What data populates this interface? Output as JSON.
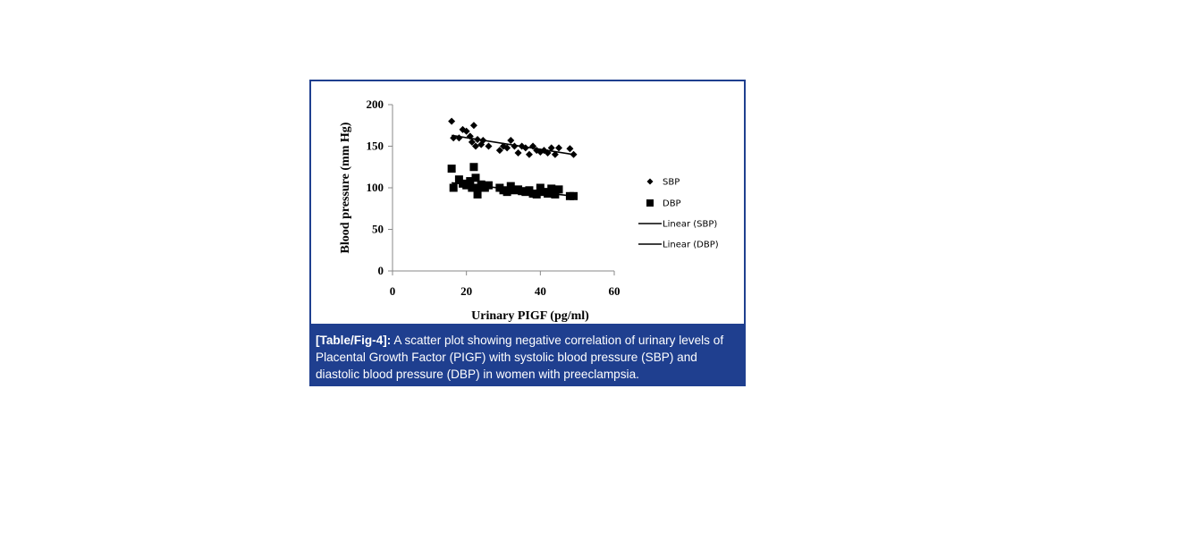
{
  "caption": {
    "label": "[Table/Fig-4]:",
    "text": " A scatter plot showing negative correlation of urinary levels of Placental Growth Factor (PIGF) with systolic blood pressure (SBP) and diastolic blood pressure (DBP) in women with preeclampsia."
  },
  "colors": {
    "frame": "#1f3f8f",
    "caption_bg": "#1f3f8f",
    "marks": "#000000"
  },
  "chart_data": {
    "type": "scatter",
    "title": "",
    "xlabel": "Urinary PIGF (pg/ml)",
    "ylabel": "Blood pressure (mm Hg)",
    "xlim": [
      0,
      60
    ],
    "ylim": [
      0,
      200
    ],
    "xticks": [
      0,
      20,
      40,
      60
    ],
    "yticks": [
      0,
      50,
      100,
      150,
      200
    ],
    "grid": false,
    "legend_position": "right",
    "series": [
      {
        "name": "SBP",
        "marker": "diamond",
        "points": [
          [
            16,
            180
          ],
          [
            16.5,
            160
          ],
          [
            18,
            160
          ],
          [
            19,
            170
          ],
          [
            20,
            168
          ],
          [
            21,
            162
          ],
          [
            21.5,
            155
          ],
          [
            22,
            175
          ],
          [
            22.5,
            150
          ],
          [
            23,
            158
          ],
          [
            24,
            152
          ],
          [
            24.5,
            157
          ],
          [
            26,
            150
          ],
          [
            29,
            145
          ],
          [
            30,
            150
          ],
          [
            31,
            148
          ],
          [
            32,
            157
          ],
          [
            33,
            150
          ],
          [
            34,
            142
          ],
          [
            35,
            150
          ],
          [
            36,
            148
          ],
          [
            37,
            140
          ],
          [
            38,
            150
          ],
          [
            39,
            145
          ],
          [
            40,
            143
          ],
          [
            41,
            145
          ],
          [
            42,
            142
          ],
          [
            43,
            148
          ],
          [
            44,
            140
          ],
          [
            45,
            148
          ],
          [
            48,
            147
          ],
          [
            49,
            140
          ]
        ]
      },
      {
        "name": "DBP",
        "marker": "square",
        "points": [
          [
            16,
            123
          ],
          [
            16.5,
            100
          ],
          [
            18,
            110
          ],
          [
            19,
            105
          ],
          [
            20,
            103
          ],
          [
            21,
            108
          ],
          [
            21.5,
            100
          ],
          [
            22,
            125
          ],
          [
            22.5,
            112
          ],
          [
            23,
            100
          ],
          [
            23,
            92
          ],
          [
            24,
            104
          ],
          [
            25,
            100
          ],
          [
            26,
            103
          ],
          [
            29,
            100
          ],
          [
            30,
            97
          ],
          [
            31,
            95
          ],
          [
            32,
            102
          ],
          [
            33,
            97
          ],
          [
            34,
            98
          ],
          [
            35,
            96
          ],
          [
            36,
            95
          ],
          [
            37,
            97
          ],
          [
            38,
            93
          ],
          [
            39,
            92
          ],
          [
            40,
            100
          ],
          [
            41,
            95
          ],
          [
            42,
            93
          ],
          [
            43,
            99
          ],
          [
            44,
            92
          ],
          [
            45,
            98
          ],
          [
            48,
            90
          ],
          [
            49,
            90
          ]
        ]
      }
    ],
    "trendlines": [
      {
        "name": "Linear (SBP)",
        "x": [
          16,
          49
        ],
        "y": [
          163,
          140
        ]
      },
      {
        "name": "Linear (DBP)",
        "x": [
          16,
          49
        ],
        "y": [
          106,
          90
        ]
      }
    ]
  }
}
